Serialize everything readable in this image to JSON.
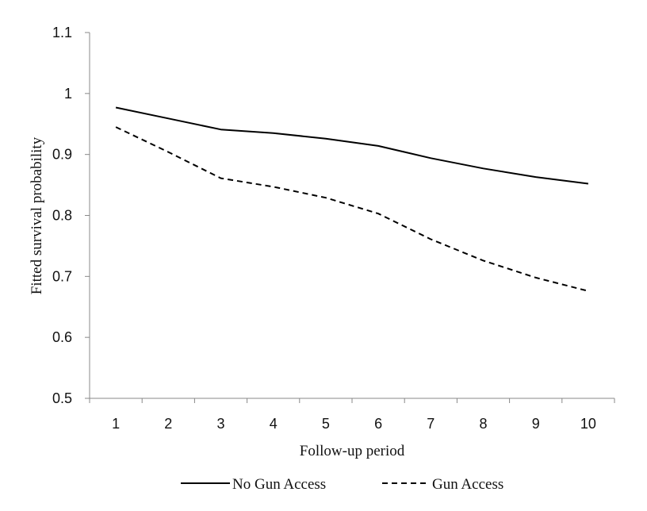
{
  "chart_data": {
    "type": "line",
    "title": "",
    "xlabel": "Follow-up period",
    "ylabel": "Fitted survival probability",
    "x": [
      1,
      2,
      3,
      4,
      5,
      6,
      7,
      8,
      9,
      10
    ],
    "categories": [
      "1",
      "2",
      "3",
      "4",
      "5",
      "6",
      "7",
      "8",
      "9",
      "10"
    ],
    "ylim": [
      0.5,
      1.1
    ],
    "yticks": [
      "0.5",
      "0.6",
      "0.7",
      "0.8",
      "0.9",
      "1",
      "1.1"
    ],
    "yticks_values": [
      0.5,
      0.6,
      0.7,
      0.8,
      0.9,
      1.0,
      1.1
    ],
    "grid": false,
    "legend_position": "bottom",
    "series": [
      {
        "name": "No Gun Access",
        "line_style": "solid",
        "color": "#000000",
        "values": [
          0.977,
          0.959,
          0.941,
          0.935,
          0.926,
          0.914,
          0.894,
          0.877,
          0.863,
          0.852
        ]
      },
      {
        "name": "Gun Access",
        "line_style": "dashed",
        "color": "#000000",
        "values": [
          0.945,
          0.904,
          0.861,
          0.847,
          0.829,
          0.803,
          0.761,
          0.726,
          0.698,
          0.676
        ]
      }
    ]
  }
}
